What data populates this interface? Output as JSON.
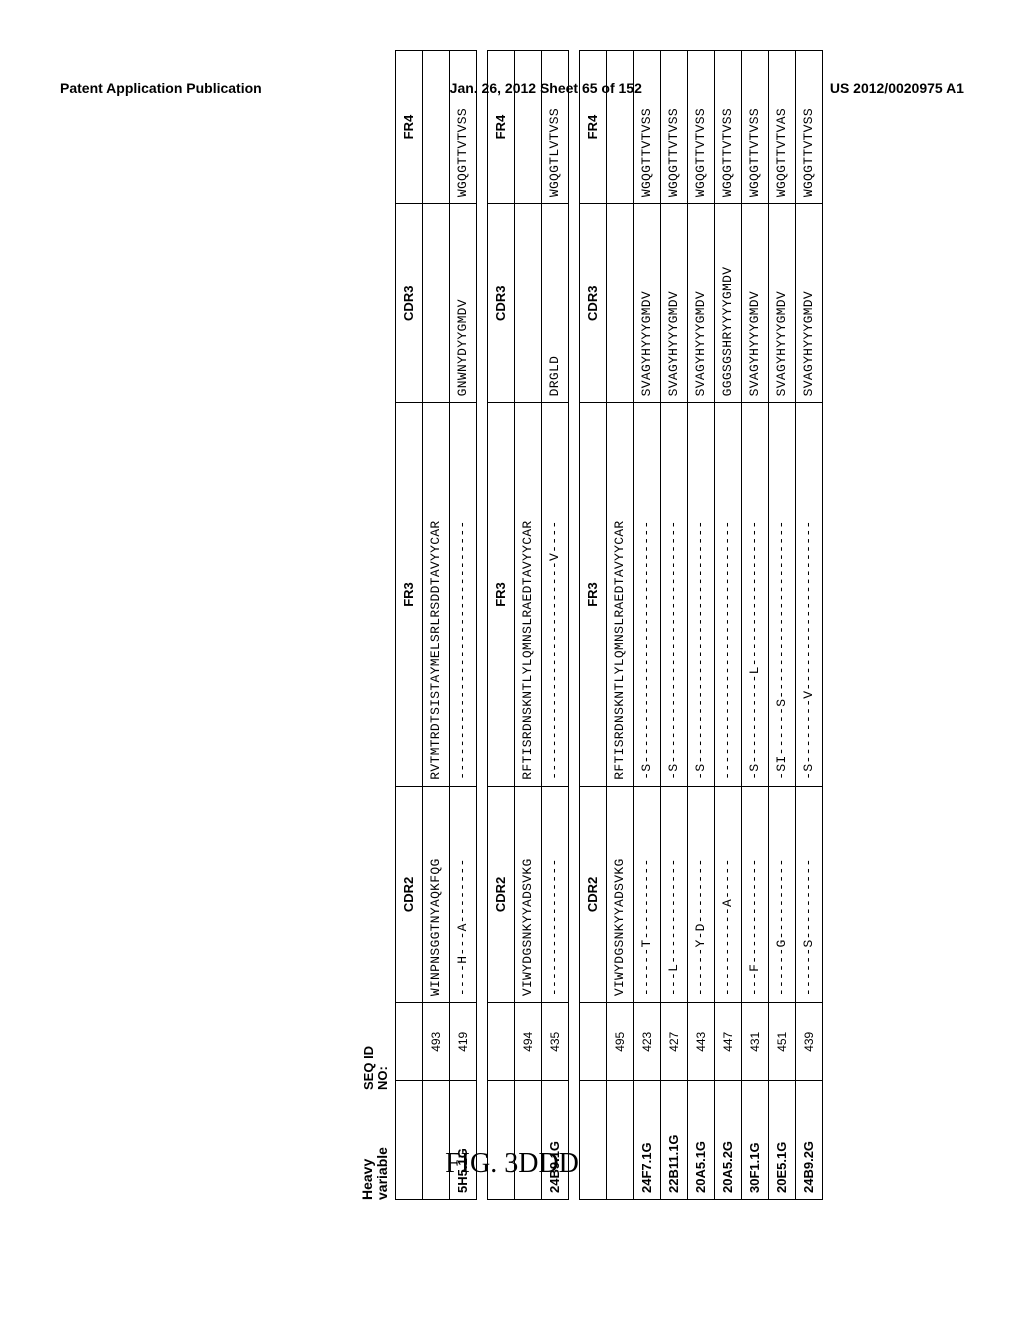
{
  "header": {
    "left": "Patent Application Publication",
    "center": "Jan. 26, 2012  Sheet 65 of 152",
    "right": "US 2012/0020975 A1"
  },
  "labels": {
    "heavy_variable_line1": "Heavy",
    "heavy_variable_line2": "variable",
    "seqid_line1": "SEQ ID",
    "seqid_line2": "NO:"
  },
  "cols": [
    "CDR2",
    "FR3",
    "CDR3",
    "FR4"
  ],
  "groups": [
    {
      "rows": [
        {
          "name": "",
          "seqid": "493",
          "cdr2": "WINPNSGGTNYAQKFQG",
          "fr3": "RVTMTRDTSISTAYMELSRLRSDDTAVYYCAR",
          "cdr3": "",
          "fr4": ""
        },
        {
          "name": "5H5.1G",
          "seqid": "419",
          "cdr2": "----H---A--------",
          "fr3": "--------------------------------",
          "cdr3": "GNWNYDYYGMDV",
          "fr4": "WGQGTTVTVSS"
        }
      ]
    },
    {
      "rows": [
        {
          "name": "",
          "seqid": "494",
          "cdr2": "VIWYDGSNKYYADSVKG",
          "fr3": "RFTISRDNSKNTLYLQMNSLRAEDTAVYYCAR",
          "cdr3": "",
          "fr4": ""
        },
        {
          "name": "24B9.1G",
          "seqid": "435",
          "cdr2": "-----------------",
          "fr3": "---------------------------V----",
          "cdr3": "DRGLD",
          "fr4": "WGQGTLVTVSS"
        }
      ]
    },
    {
      "rows": [
        {
          "name": "",
          "seqid": "495",
          "cdr2": "VIWYDGSNKYYADSVKG",
          "fr3": "RFTISRDNSKNTLYLQMNSLRAEDTAVYYCAR",
          "cdr3": "",
          "fr4": ""
        },
        {
          "name": "24F7.1G",
          "seqid": "423",
          "cdr2": "------T----------",
          "fr3": "-S------------------------------",
          "cdr3": "SVAGYHYYYGMDV",
          "fr4": "WGQGTTVTVSS"
        },
        {
          "name": "22B11.1G",
          "seqid": "427",
          "cdr2": "---L-------------",
          "fr3": "-S------------------------------",
          "cdr3": "SVAGYHYYYGMDV",
          "fr4": "WGQGTTVTVSS"
        },
        {
          "name": "20A5.1G",
          "seqid": "443",
          "cdr2": "------Y-D--------",
          "fr3": "-S------------------------------",
          "cdr3": "SVAGYHYYYGMDV",
          "fr4": "WGQGTTVTVSS"
        },
        {
          "name": "20A5.2G",
          "seqid": "447",
          "cdr2": "-----------A-----",
          "fr3": "--------------------------------",
          "cdr3": "GGGSGSHRYYYYGMDV",
          "fr4": "WGQGTTVTVSS"
        },
        {
          "name": "30F1.1G",
          "seqid": "431",
          "cdr2": "---F-------------",
          "fr3": "-S-----------L------------------",
          "cdr3": "SVAGYHYYYGMDV",
          "fr4": "WGQGTTVTVSS"
        },
        {
          "name": "20E5.1G",
          "seqid": "451",
          "cdr2": "------G----------",
          "fr3": "-SI------S----------------------",
          "cdr3": "SVAGYHYYYGMDV",
          "fr4": "WGQGTTVTVAS"
        },
        {
          "name": "24B9.2G",
          "seqid": "439",
          "cdr2": "------S----------",
          "fr3": "-S--------V---------------------",
          "cdr3": "SVAGYHYYYGMDV",
          "fr4": "WGQGTTVTVSS"
        }
      ]
    }
  ],
  "figure_caption": "FIG. 3DDD"
}
